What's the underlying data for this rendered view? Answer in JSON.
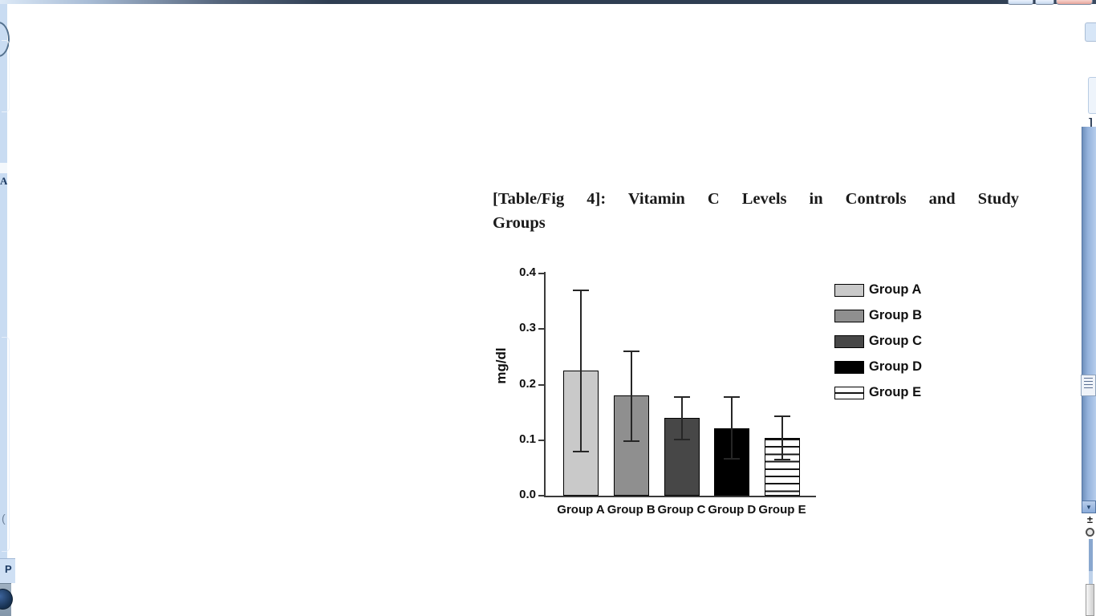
{
  "document": {
    "caption_line1": "[Table/Fig 4]: Vitamin C Levels in Controls and Study",
    "caption_line2": "Groups"
  },
  "chart_data": {
    "type": "bar",
    "title": "[Table/Fig 4]: Vitamin C Levels in Controls and Study Groups",
    "xlabel": "",
    "ylabel": "mg/dl",
    "categories": [
      "Group A",
      "Group B",
      "Group C",
      "Group D",
      "Group E"
    ],
    "values": [
      0.225,
      0.18,
      0.14,
      0.122,
      0.104
    ],
    "error_high": [
      0.37,
      0.26,
      0.178,
      0.178,
      0.143
    ],
    "error_low": [
      0.08,
      0.098,
      0.101,
      0.066,
      0.065
    ],
    "ylim": [
      0.0,
      0.4
    ],
    "yticks": [
      0.0,
      0.1,
      0.2,
      0.3,
      0.4
    ],
    "ytick_labels": [
      "0.0",
      "0.1",
      "0.2",
      "0.3",
      "0.4"
    ],
    "grid": false,
    "legend_position": "right",
    "bar_colors": [
      "#c9c9c9",
      "#8f8f8f",
      "#474747",
      "#000000",
      "#ffffff"
    ],
    "bar_patterns": [
      "solid",
      "solid",
      "solid",
      "solid",
      "hstripes"
    ],
    "legend": [
      {
        "label": "Group A",
        "fill": "#c9c9c9",
        "pattern": "solid"
      },
      {
        "label": "Group B",
        "fill": "#8f8f8f",
        "pattern": "solid"
      },
      {
        "label": "Group C",
        "fill": "#474747",
        "pattern": "solid"
      },
      {
        "label": "Group D",
        "fill": "#000000",
        "pattern": "solid"
      },
      {
        "label": "Group E",
        "fill": "#ffffff",
        "pattern": "hline"
      }
    ],
    "colors": {
      "axis": "#3a3a3a",
      "error_bar": "#262626",
      "text": "#111111"
    }
  },
  "status": {
    "partial_page_text": "P"
  },
  "edge_fragments": {
    "left_letter": "A",
    "left_paren": "(",
    "right_bracket": "]"
  },
  "scrollbar": {
    "down_arrow_glyph": "▼",
    "previous_page_glyph": "±",
    "browse_object_glyph": ""
  }
}
